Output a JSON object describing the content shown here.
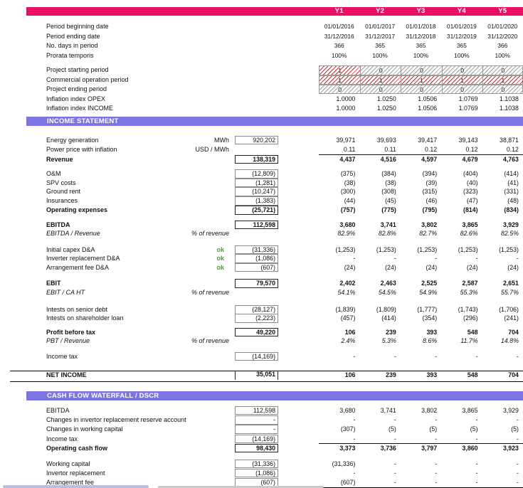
{
  "columns": {
    "labels": [
      "Y1",
      "Y2",
      "Y3",
      "Y4",
      "Y5"
    ]
  },
  "colors": {
    "accent_pink": "#ec0e63",
    "accent_purple": "#7c75e1",
    "ok_green": "#4f9d2f",
    "flag_red": "#c32828",
    "flag_gray": "#919191"
  },
  "period_rows": [
    {
      "label": "Period beginning date",
      "centered": true,
      "years": [
        "01/01/2016",
        "01/01/2017",
        "01/01/2018",
        "01/01/2019",
        "01/01/2020"
      ]
    },
    {
      "label": "Period ending date",
      "centered": true,
      "years": [
        "31/12/2016",
        "31/12/2017",
        "31/12/2018",
        "31/12/2019",
        "31/12/2020"
      ]
    },
    {
      "label": "No. days in period",
      "centered": true,
      "years": [
        "366",
        "365",
        "365",
        "365",
        "366"
      ]
    },
    {
      "label": "Prorata temporis",
      "centered": true,
      "years": [
        "100%",
        "100%",
        "100%",
        "100%",
        "100%"
      ]
    }
  ],
  "flag_rows": [
    {
      "label": "Project starting period",
      "cells": [
        {
          "v": "1",
          "hatch": "red"
        },
        {
          "v": "0",
          "hatch": "gray"
        },
        {
          "v": "0",
          "hatch": "gray"
        },
        {
          "v": "0",
          "hatch": "gray"
        },
        {
          "v": "0",
          "hatch": "gray"
        }
      ]
    },
    {
      "label": "Commercial operation period",
      "cells": [
        {
          "v": "1",
          "hatch": "red"
        },
        {
          "v": "1",
          "hatch": "red"
        },
        {
          "v": "1",
          "hatch": "red"
        },
        {
          "v": "1",
          "hatch": "red"
        },
        {
          "v": "1",
          "hatch": "red"
        }
      ]
    },
    {
      "label": "Project ending period",
      "cells": [
        {
          "v": "0",
          "hatch": "gray"
        },
        {
          "v": "0",
          "hatch": "gray"
        },
        {
          "v": "0",
          "hatch": "gray"
        },
        {
          "v": "0",
          "hatch": "gray"
        },
        {
          "v": "0",
          "hatch": "gray"
        }
      ]
    }
  ],
  "inflation_rows": [
    {
      "label": "Inflation index OPEX",
      "years": [
        "1.0000",
        "1.0250",
        "1.0506",
        "1.0769",
        "1.1038"
      ]
    },
    {
      "label": "Inflation index INCOME",
      "years": [
        "1.0000",
        "1.0250",
        "1.0506",
        "1.0769",
        "1.1038"
      ]
    }
  ],
  "sections": [
    {
      "title": "INCOME STATEMENT",
      "rows": [
        {
          "label": "Energy generation",
          "unit": "MWh",
          "total": "920,202",
          "box": "g",
          "years": [
            "39,971",
            "39,693",
            "39,417",
            "39,143",
            "38,871"
          ]
        },
        {
          "label": "Power price with inflation",
          "unit": "USD / MWh",
          "years": [
            "0.11",
            "0.11",
            "0.12",
            "0.12",
            "0.12"
          ]
        },
        {
          "label": "Revenue",
          "bold": true,
          "total": "138,319",
          "box": "k",
          "lineAboveYears": true,
          "years": [
            "4,437",
            "4,516",
            "4,597",
            "4,679",
            "4,763"
          ]
        },
        {
          "label": "O&M",
          "total": "(12,809)",
          "box": "g",
          "years": [
            "(375)",
            "(384)",
            "(394)",
            "(404)",
            "(414)"
          ]
        },
        {
          "label": "SPV costs",
          "total": "(1,281)",
          "box": "g",
          "years": [
            "(38)",
            "(38)",
            "(39)",
            "(40)",
            "(41)"
          ]
        },
        {
          "label": "Ground rent",
          "total": "(10,247)",
          "box": "g",
          "years": [
            "(300)",
            "(308)",
            "(315)",
            "(323)",
            "(331)"
          ]
        },
        {
          "label": "Insurances",
          "total": "(1,383)",
          "box": "g",
          "years": [
            "(44)",
            "(45)",
            "(46)",
            "(47)",
            "(48)"
          ]
        },
        {
          "label": "Operating expenses",
          "bold": true,
          "total": "(25,721)",
          "box": "k",
          "years": [
            "(757)",
            "(775)",
            "(795)",
            "(814)",
            "(834)"
          ]
        },
        {
          "label": "EBITDA",
          "bold": true,
          "total": "112,598",
          "box": "k",
          "years": [
            "3,680",
            "3,741",
            "3,802",
            "3,865",
            "3,929"
          ]
        },
        {
          "label": "EBITDA / Revenue",
          "italic": true,
          "unit": "% of revenue",
          "years": [
            "82.9%",
            "82.8%",
            "82.7%",
            "82.6%",
            "82.5%"
          ]
        },
        {
          "label": "Initial capex D&A",
          "ok": "ok",
          "total": "(31,336)",
          "box": "g",
          "years": [
            "(1,253)",
            "(1,253)",
            "(1,253)",
            "(1,253)",
            "(1,253)"
          ]
        },
        {
          "label": "Inverter replacement D&A",
          "ok": "ok",
          "total": "(1,086)",
          "box": "g",
          "years": [
            "-",
            "-",
            "-",
            "-",
            "-"
          ]
        },
        {
          "label": "Arrangement fee D&A",
          "ok": "ok",
          "total": "(607)",
          "box": "g",
          "years": [
            "(24)",
            "(24)",
            "(24)",
            "(24)",
            "(24)"
          ]
        },
        {
          "label": "EBIT",
          "bold": true,
          "total": "79,570",
          "box": "k",
          "years": [
            "2,402",
            "2,463",
            "2,525",
            "2,587",
            "2,651"
          ]
        },
        {
          "label": "EBIT / CA HT",
          "italic": true,
          "unit": "% of revenue",
          "years": [
            "54.1%",
            "54.5%",
            "54.9%",
            "55.3%",
            "55.7%"
          ]
        },
        {
          "label": "Intests on senior debt",
          "total": "(28,127)",
          "box": "g",
          "years": [
            "(1,839)",
            "(1,809)",
            "(1,777)",
            "(1,743)",
            "(1,706)"
          ]
        },
        {
          "label": "Intests on shareholder loan",
          "total": "(2,223)",
          "box": "g",
          "years": [
            "(457)",
            "(414)",
            "(354)",
            "(296)",
            "(241)"
          ]
        },
        {
          "label": "Profit before tax",
          "bold": true,
          "total": "49,220",
          "box": "k",
          "years": [
            "106",
            "239",
            "393",
            "548",
            "704"
          ]
        },
        {
          "label": "PBT / Revenue",
          "italic": true,
          "unit": "% of revenue",
          "years": [
            "2.4%",
            "5.3%",
            "8.6%",
            "11.7%",
            "14.8%"
          ]
        },
        {
          "label": "Income tax",
          "total": "(14,169)",
          "box": "g",
          "years": [
            "-",
            "-",
            "-",
            "-",
            "-"
          ]
        },
        {
          "label": "NET INCOME",
          "bold": true,
          "total": "35,051",
          "box": "net",
          "years": [
            "106",
            "239",
            "393",
            "548",
            "704"
          ]
        }
      ]
    },
    {
      "title": "CASH FLOW WATERFALL / DSCR",
      "rows": [
        {
          "label": "EBITDA",
          "total": "112,598",
          "box": "g",
          "years": [
            "3,680",
            "3,741",
            "3,802",
            "3,865",
            "3,929"
          ]
        },
        {
          "label": "Changes in invertor replacement reserve account",
          "total": "-",
          "box": "g",
          "years": [
            "-",
            "-",
            "-",
            "-",
            "-"
          ]
        },
        {
          "label": "Changes in working capital",
          "total": "-",
          "box": "g",
          "years": [
            "(307)",
            "(5)",
            "(5)",
            "(5)",
            "(5)"
          ]
        },
        {
          "label": "Income tax",
          "total": "(14,169)",
          "box": "g",
          "years": [
            "-",
            "-",
            "-",
            "-",
            "-"
          ]
        },
        {
          "label": "Operating cash flow",
          "bold": true,
          "total": "98,430",
          "box": "k",
          "lineAboveYears": true,
          "years": [
            "3,373",
            "3,736",
            "3,797",
            "3,860",
            "3,923"
          ]
        },
        {
          "label": "Working capital",
          "total": "(31,336)",
          "box": "g",
          "years": [
            "(31,336)",
            "-",
            "-",
            "-",
            "-"
          ]
        },
        {
          "label": "Invertor replacement",
          "total": "(1,086)",
          "box": "g",
          "years": [
            "-",
            "-",
            "-",
            "-",
            "-"
          ]
        },
        {
          "label": "Arrangement fee",
          "total": "(607)",
          "box": "g",
          "lineBelow": true,
          "years": [
            "(607)",
            "-",
            "-",
            "-",
            "-"
          ]
        }
      ]
    }
  ]
}
